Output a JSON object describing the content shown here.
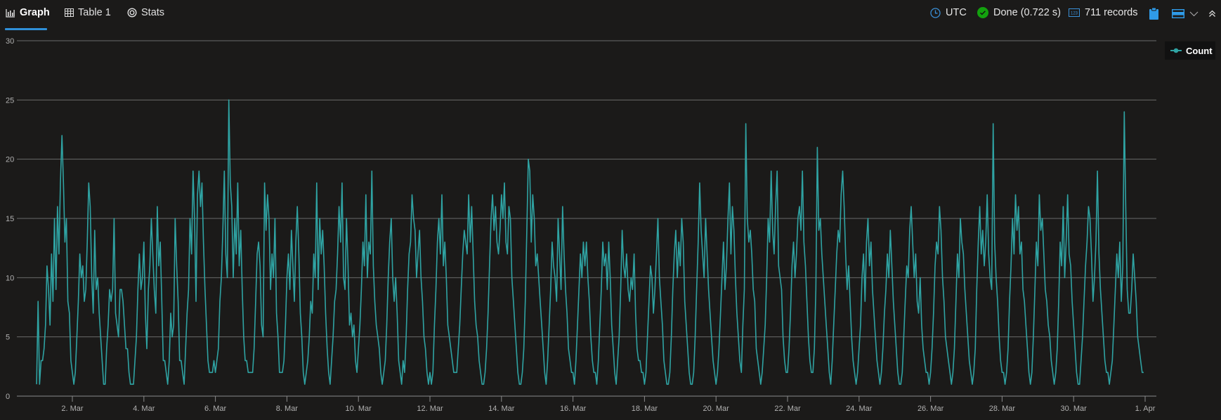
{
  "tabs": [
    {
      "label": "Graph",
      "icon": "bar-chart-icon"
    },
    {
      "label": "Table 1",
      "icon": "table-icon"
    },
    {
      "label": "Stats",
      "icon": "stats-icon"
    }
  ],
  "toolbar": {
    "timezone": "UTC",
    "status": "Done (0.722 s)",
    "records": "711 records"
  },
  "colors": {
    "series": "#2fa3a3",
    "accent": "#2f8fd8",
    "done": "#13a10e"
  },
  "chart_data": {
    "type": "line",
    "title": "",
    "xlabel": "",
    "ylabel": "",
    "ylim": [
      0,
      30
    ],
    "yticks": [
      "0",
      "5",
      "10",
      "15",
      "20",
      "25",
      "30"
    ],
    "xticks": [
      {
        "label": "2. Mar",
        "day": 2
      },
      {
        "label": "4. Mar",
        "day": 4
      },
      {
        "label": "6. Mar",
        "day": 6
      },
      {
        "label": "8. Mar",
        "day": 8
      },
      {
        "label": "10. Mar",
        "day": 10
      },
      {
        "label": "12. Mar",
        "day": 12
      },
      {
        "label": "14. Mar",
        "day": 14
      },
      {
        "label": "16. Mar",
        "day": 16
      },
      {
        "label": "18. Mar",
        "day": 18
      },
      {
        "label": "20. Mar",
        "day": 20
      },
      {
        "label": "22. Mar",
        "day": 22
      },
      {
        "label": "24. Mar",
        "day": 24
      },
      {
        "label": "26. Mar",
        "day": 26
      },
      {
        "label": "28. Mar",
        "day": 28
      },
      {
        "label": "30. Mar",
        "day": 30
      },
      {
        "label": "1. Apr",
        "day": 32
      }
    ],
    "grid": true,
    "legend": {
      "position": "top-right",
      "entries": [
        "Count"
      ]
    },
    "x_start": "1. Mar 00:00",
    "x_step": "1 hour",
    "series": [
      {
        "name": "Count",
        "values": [
          1,
          8,
          1,
          3,
          3,
          4,
          6,
          11,
          9,
          6,
          12,
          8,
          15,
          9,
          16,
          12,
          18,
          22,
          18,
          13,
          15,
          8,
          7,
          3,
          2,
          1,
          2,
          5,
          8,
          12,
          10,
          11,
          8,
          9,
          13,
          18,
          16,
          10,
          7,
          14,
          9,
          10,
          7,
          5,
          3,
          1,
          1,
          4,
          6,
          9,
          8,
          9,
          15,
          7,
          6,
          5,
          9,
          9,
          8,
          6,
          4,
          4,
          2,
          1,
          1,
          1,
          3,
          5,
          9,
          12,
          9,
          10,
          13,
          7,
          4,
          9,
          11,
          15,
          12,
          9,
          7,
          16,
          11,
          13,
          8,
          3,
          3,
          2,
          1,
          3,
          7,
          5,
          6,
          15,
          11,
          8,
          3,
          3,
          2,
          1,
          4,
          7,
          9,
          15,
          12,
          19,
          15,
          8,
          17,
          19,
          16,
          18,
          13,
          9,
          6,
          3,
          2,
          2,
          2,
          3,
          2,
          3,
          4,
          8,
          10,
          14,
          19,
          12,
          10,
          25,
          18,
          16,
          10,
          15,
          12,
          18,
          11,
          14,
          9,
          5,
          3,
          3,
          2,
          2,
          2,
          2,
          4,
          8,
          12,
          13,
          11,
          6,
          5,
          18,
          14,
          17,
          15,
          9,
          12,
          10,
          15,
          7,
          5,
          2,
          2,
          2,
          3,
          6,
          10,
          12,
          9,
          14,
          11,
          8,
          13,
          16,
          12,
          7,
          5,
          2,
          1,
          2,
          3,
          5,
          8,
          7,
          12,
          10,
          18,
          9,
          15,
          12,
          14,
          11,
          7,
          4,
          2,
          1,
          3,
          5,
          8,
          9,
          12,
          16,
          13,
          18,
          10,
          9,
          15,
          11,
          6,
          7,
          5,
          6,
          3,
          2,
          4,
          6,
          9,
          13,
          11,
          17,
          10,
          13,
          12,
          19,
          11,
          8,
          6,
          5,
          4,
          2,
          1,
          2,
          3,
          6,
          10,
          13,
          15,
          10,
          8,
          10,
          7,
          3,
          2,
          1,
          3,
          2,
          5,
          9,
          12,
          13,
          17,
          15,
          14,
          10,
          12,
          14,
          10,
          8,
          5,
          4,
          2,
          1,
          2,
          1,
          2,
          6,
          9,
          13,
          15,
          12,
          17,
          11,
          13,
          10,
          6,
          5,
          4,
          3,
          2,
          2,
          2,
          4,
          6,
          9,
          12,
          14,
          13,
          12,
          17,
          13,
          16,
          12,
          8,
          6,
          5,
          3,
          2,
          1,
          1,
          2,
          4,
          7,
          11,
          15,
          17,
          14,
          16,
          13,
          12,
          14,
          17,
          15,
          18,
          13,
          12,
          16,
          15,
          10,
          8,
          6,
          4,
          2,
          1,
          1,
          2,
          4,
          8,
          14,
          20,
          19,
          13,
          17,
          15,
          11,
          12,
          10,
          8,
          6,
          4,
          2,
          1,
          3,
          6,
          9,
          13,
          11,
          10,
          8,
          15,
          12,
          9,
          16,
          12,
          9,
          7,
          4,
          3,
          2,
          2,
          1,
          3,
          6,
          9,
          12,
          10,
          13,
          11,
          13,
          10,
          8,
          5,
          3,
          2,
          2,
          1,
          3,
          6,
          9,
          13,
          11,
          12,
          9,
          13,
          10,
          6,
          4,
          2,
          1,
          3,
          5,
          9,
          14,
          11,
          10,
          12,
          9,
          8,
          10,
          9,
          12,
          7,
          4,
          3,
          3,
          2,
          2,
          1,
          2,
          5,
          8,
          11,
          10,
          7,
          9,
          12,
          15,
          10,
          8,
          6,
          3,
          2,
          1,
          1,
          2,
          5,
          9,
          12,
          14,
          10,
          13,
          11,
          15,
          13,
          8,
          6,
          4,
          2,
          1,
          1,
          2,
          5,
          9,
          13,
          18,
          14,
          12,
          10,
          15,
          12,
          9,
          7,
          5,
          3,
          2,
          1,
          2,
          4,
          7,
          10,
          13,
          9,
          11,
          15,
          18,
          12,
          16,
          14,
          10,
          7,
          5,
          3,
          2,
          6,
          9,
          23,
          15,
          13,
          14,
          12,
          9,
          8,
          4,
          3,
          2,
          1,
          2,
          4,
          6,
          10,
          15,
          13,
          19,
          14,
          12,
          16,
          19,
          11,
          10,
          9,
          5,
          3,
          2,
          2,
          4,
          7,
          11,
          13,
          10,
          12,
          15,
          16,
          14,
          19,
          13,
          11,
          8,
          5,
          3,
          2,
          2,
          4,
          9,
          21,
          14,
          15,
          12,
          10,
          8,
          6,
          4,
          2,
          1,
          3,
          6,
          9,
          12,
          14,
          13,
          17,
          19,
          16,
          12,
          9,
          11,
          8,
          5,
          3,
          2,
          1,
          2,
          4,
          6,
          10,
          12,
          8,
          13,
          15,
          11,
          13,
          9,
          7,
          5,
          3,
          2,
          1,
          2,
          4,
          7,
          9,
          12,
          10,
          14,
          11,
          8,
          6,
          4,
          2,
          1,
          1,
          2,
          5,
          8,
          11,
          10,
          14,
          16,
          13,
          10,
          12,
          8,
          7,
          10,
          6,
          4,
          3,
          2,
          2,
          1,
          2,
          4,
          7,
          11,
          13,
          12,
          16,
          14,
          10,
          8,
          5,
          4,
          3,
          2,
          1,
          2,
          4,
          8,
          12,
          10,
          15,
          13,
          12,
          9,
          7,
          5,
          3,
          2,
          1,
          2,
          4,
          9,
          13,
          16,
          12,
          14,
          11,
          13,
          17,
          12,
          10,
          9,
          23,
          13,
          10,
          8,
          5,
          3,
          2,
          2,
          1,
          2,
          4,
          8,
          11,
          15,
          12,
          17,
          14,
          16,
          12,
          13,
          9,
          8,
          6,
          4,
          2,
          1,
          2,
          5,
          9,
          13,
          11,
          17,
          14,
          15,
          12,
          9,
          8,
          6,
          5,
          3,
          2,
          1,
          2,
          4,
          8,
          13,
          11,
          16,
          10,
          13,
          17,
          12,
          11,
          8,
          6,
          4,
          2,
          1,
          1,
          3,
          5,
          8,
          11,
          13,
          16,
          15,
          12,
          8,
          10,
          13,
          19,
          12,
          9,
          7,
          5,
          3,
          2,
          2,
          1,
          2,
          3,
          6,
          9,
          12,
          10,
          13,
          8,
          11,
          24,
          16,
          9,
          7,
          7,
          9,
          12,
          10,
          8,
          5,
          4,
          3,
          2,
          2
        ]
      }
    ]
  }
}
